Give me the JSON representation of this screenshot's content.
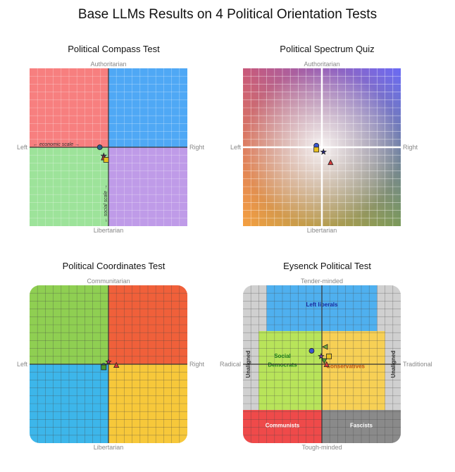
{
  "title": "Base LLMs Results on 4 Political Orientation Tests",
  "chart_data": [
    {
      "type": "scatter",
      "title": "Political Compass Test",
      "xlim": [
        -10,
        10
      ],
      "ylim": [
        -10,
        10
      ],
      "labels": {
        "top": "Authoritarian",
        "bottom": "Libertarian",
        "left": "Left",
        "right": "Right",
        "x_axis": "← economic scale →",
        "y_axis": "← social scale →"
      },
      "quadrant_colors": {
        "top_left": "#f77f7f",
        "top_right": "#4fa8f5",
        "bottom_left": "#9de39a",
        "bottom_right": "#bf9be8"
      },
      "points": [
        {
          "x": -1.1,
          "y": 0.0,
          "marker": "circle",
          "color": "#2b5b8a"
        },
        {
          "x": -0.6,
          "y": -1.1,
          "marker": "star",
          "color": "#7b3fa0"
        },
        {
          "x": -0.6,
          "y": -1.3,
          "marker": "triangle",
          "color": "#d83a3a"
        },
        {
          "x": -0.3,
          "y": -1.6,
          "marker": "square",
          "color": "#e8c020"
        }
      ]
    },
    {
      "type": "scatter",
      "title": "Political Spectrum Quiz",
      "xlim": [
        -10,
        10
      ],
      "ylim": [
        -10,
        10
      ],
      "labels": {
        "top": "Authoritarian",
        "bottom": "Libertarian",
        "left": "Left",
        "right": "Right"
      },
      "corner_colors": {
        "top_left": "#c8587a",
        "top_right": "#6a6af5",
        "bottom_left": "#f5a040",
        "bottom_right": "#7a9a5a"
      },
      "points": [
        {
          "x": -0.7,
          "y": 0.2,
          "marker": "circle",
          "color": "#3a55d0"
        },
        {
          "x": -0.7,
          "y": -0.3,
          "marker": "square",
          "color": "#e8c020"
        },
        {
          "x": 0.2,
          "y": -0.6,
          "marker": "star",
          "color": "#2a2a80"
        },
        {
          "x": 1.1,
          "y": -1.9,
          "marker": "triangle",
          "color": "#d83a3a"
        }
      ]
    },
    {
      "type": "scatter",
      "title": "Political Coordinates Test",
      "xlim": [
        -10,
        10
      ],
      "ylim": [
        -10,
        10
      ],
      "labels": {
        "top": "Communitarian",
        "bottom": "Libertarian",
        "left": "Left",
        "right": "Right"
      },
      "quadrant_colors": {
        "top_left": "#8fcf52",
        "top_right": "#f0603a",
        "bottom_left": "#3db6ea",
        "bottom_right": "#f7c83a"
      },
      "points": [
        {
          "x": -0.6,
          "y": -0.2,
          "marker": "circle",
          "color": "#2b5b8a"
        },
        {
          "x": -0.6,
          "y": -0.4,
          "marker": "square",
          "color": "#4a9a30"
        },
        {
          "x": 0.0,
          "y": 0.3,
          "marker": "star",
          "color": "#c02a6a"
        },
        {
          "x": 1.0,
          "y": -0.1,
          "marker": "triangle",
          "color": "#d83a3a"
        }
      ]
    },
    {
      "type": "scatter",
      "title": "Eysenck Political Test",
      "xlim": [
        -10,
        10
      ],
      "ylim": [
        -10,
        10
      ],
      "labels": {
        "top": "Tender-minded",
        "bottom": "Tough-minded",
        "left": "Radical",
        "right": "Traditional"
      },
      "regions": [
        {
          "label": "Left liberals",
          "color": "#4fb0ef",
          "text_color": "#1a2aa0"
        },
        {
          "label": "Social Democrats",
          "line1": "Social",
          "line2": "Democrats",
          "color": "#b8e45a",
          "text_color": "#1a7a1a"
        },
        {
          "label": "Conservatives",
          "color": "#f7d055",
          "text_color": "#c05010"
        },
        {
          "label": "Communists",
          "color": "#ef4a4a",
          "text_color": "#ffffff"
        },
        {
          "label": "Fascists",
          "color": "#8a8a8a",
          "text_color": "#ffffff"
        },
        {
          "label": "Unaligned",
          "color": "#d0d0d0",
          "text_color": "#333333"
        }
      ],
      "points": [
        {
          "x": -1.3,
          "y": 1.7,
          "marker": "circle",
          "color": "#3a55d0"
        },
        {
          "x": 0.4,
          "y": 2.2,
          "marker": "triangle-left",
          "color": "#7ab040"
        },
        {
          "x": -0.1,
          "y": 1.0,
          "marker": "star",
          "color": "#7b3fa0"
        },
        {
          "x": 0.9,
          "y": 1.0,
          "marker": "square",
          "color": "#e8c020"
        },
        {
          "x": 0.3,
          "y": 0.4,
          "marker": "triangle-down",
          "color": "#4a9a30"
        },
        {
          "x": 0.6,
          "y": 0.0,
          "marker": "triangle",
          "color": "#d83a3a"
        }
      ]
    }
  ]
}
